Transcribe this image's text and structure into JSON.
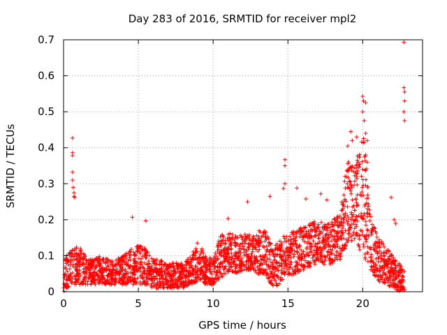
{
  "chart_data": {
    "type": "scatter",
    "title": "Day 283 of 2016, SRMTID for receiver mpl2",
    "xlabel": "GPS time / hours",
    "ylabel": "SRMTID / TECUs",
    "xlim": [
      0,
      24
    ],
    "ylim": [
      0,
      0.7
    ],
    "x_ticks": [
      0,
      5,
      10,
      15,
      20
    ],
    "x_tick_labels": [
      "0",
      "5",
      "10",
      "15",
      "20"
    ],
    "y_ticks": [
      0,
      0.1,
      0.2,
      0.3,
      0.4,
      0.5,
      0.6,
      0.7
    ],
    "y_tick_labels": [
      "0",
      "0.1",
      "0.2",
      "0.3",
      "0.4",
      "0.5",
      "0.6",
      "0.7"
    ],
    "grid": true,
    "marker": "plus",
    "marker_color": "#ff0000",
    "series_envelope": {
      "description": "estimated typical value range of the dense point cloud, sampled every 0.5 h (x, y_low, y_high)",
      "points": [
        [
          0.0,
          0.0,
          0.09
        ],
        [
          0.5,
          0.02,
          0.12
        ],
        [
          1.0,
          0.02,
          0.13
        ],
        [
          1.5,
          0.02,
          0.1
        ],
        [
          2.0,
          0.02,
          0.09
        ],
        [
          2.5,
          0.02,
          0.1
        ],
        [
          3.0,
          0.02,
          0.09
        ],
        [
          3.5,
          0.02,
          0.09
        ],
        [
          4.0,
          0.02,
          0.1
        ],
        [
          4.5,
          0.02,
          0.12
        ],
        [
          5.0,
          0.02,
          0.13
        ],
        [
          5.5,
          0.02,
          0.12
        ],
        [
          6.0,
          0.01,
          0.09
        ],
        [
          6.5,
          0.01,
          0.09
        ],
        [
          7.0,
          0.01,
          0.08
        ],
        [
          7.5,
          0.01,
          0.08
        ],
        [
          8.0,
          0.01,
          0.08
        ],
        [
          8.5,
          0.02,
          0.1
        ],
        [
          9.0,
          0.03,
          0.14
        ],
        [
          9.5,
          0.02,
          0.1
        ],
        [
          10.0,
          0.02,
          0.1
        ],
        [
          10.5,
          0.04,
          0.16
        ],
        [
          11.0,
          0.05,
          0.17
        ],
        [
          11.5,
          0.05,
          0.16
        ],
        [
          12.0,
          0.06,
          0.16
        ],
        [
          12.5,
          0.06,
          0.16
        ],
        [
          13.0,
          0.05,
          0.17
        ],
        [
          13.5,
          0.05,
          0.17
        ],
        [
          14.0,
          0.01,
          0.13
        ],
        [
          14.5,
          0.02,
          0.15
        ],
        [
          15.0,
          0.04,
          0.16
        ],
        [
          15.5,
          0.05,
          0.17
        ],
        [
          16.0,
          0.06,
          0.18
        ],
        [
          16.5,
          0.07,
          0.19
        ],
        [
          17.0,
          0.08,
          0.2
        ],
        [
          17.5,
          0.07,
          0.19
        ],
        [
          18.0,
          0.08,
          0.2
        ],
        [
          18.5,
          0.09,
          0.22
        ],
        [
          19.0,
          0.14,
          0.38
        ],
        [
          19.5,
          0.14,
          0.34
        ],
        [
          20.0,
          0.1,
          0.48
        ],
        [
          20.5,
          0.06,
          0.22
        ],
        [
          21.0,
          0.03,
          0.15
        ],
        [
          21.5,
          0.02,
          0.13
        ],
        [
          22.0,
          0.01,
          0.1
        ],
        [
          22.5,
          0.0,
          0.08
        ],
        [
          22.8,
          0.0,
          0.06
        ]
      ]
    },
    "notable_points": [
      [
        0.6,
        0.427
      ],
      [
        0.6,
        0.386
      ],
      [
        0.6,
        0.378
      ],
      [
        0.6,
        0.332
      ],
      [
        0.6,
        0.31
      ],
      [
        0.65,
        0.29
      ],
      [
        0.7,
        0.275
      ],
      [
        0.7,
        0.265
      ],
      [
        0.75,
        0.262
      ],
      [
        4.6,
        0.207
      ],
      [
        5.5,
        0.197
      ],
      [
        11.0,
        0.203
      ],
      [
        12.3,
        0.25
      ],
      [
        13.8,
        0.265
      ],
      [
        14.8,
        0.367
      ],
      [
        14.8,
        0.35
      ],
      [
        14.8,
        0.3
      ],
      [
        14.7,
        0.287
      ],
      [
        15.6,
        0.288
      ],
      [
        16.2,
        0.258
      ],
      [
        17.2,
        0.272
      ],
      [
        17.6,
        0.255
      ],
      [
        19.2,
        0.445
      ],
      [
        19.3,
        0.42
      ],
      [
        19.0,
        0.405
      ],
      [
        19.6,
        0.43
      ],
      [
        20.0,
        0.543
      ],
      [
        20.05,
        0.53
      ],
      [
        20.2,
        0.525
      ],
      [
        20.0,
        0.5
      ],
      [
        20.1,
        0.475
      ],
      [
        20.2,
        0.44
      ],
      [
        20.3,
        0.42
      ],
      [
        20.2,
        0.38
      ],
      [
        20.3,
        0.36
      ],
      [
        21.9,
        0.262
      ],
      [
        22.1,
        0.2
      ],
      [
        22.2,
        0.19
      ],
      [
        22.75,
        0.693
      ],
      [
        22.75,
        0.567
      ],
      [
        22.8,
        0.555
      ],
      [
        22.8,
        0.53
      ],
      [
        22.75,
        0.5
      ],
      [
        22.8,
        0.475
      ]
    ]
  }
}
